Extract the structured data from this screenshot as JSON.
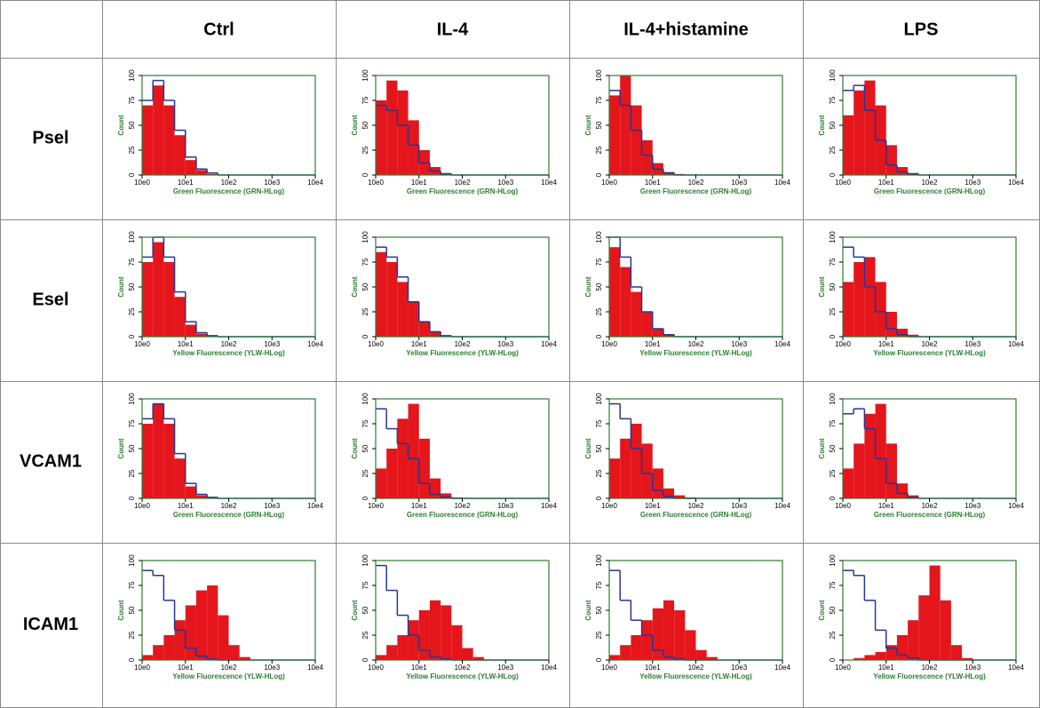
{
  "header": {
    "columns": [
      "Ctrl",
      "IL-4",
      "IL-4+histamine",
      "LPS"
    ]
  },
  "axes": {
    "y_label": "Count",
    "ylim": [
      0,
      100
    ],
    "yticks": [
      0,
      25,
      50,
      75,
      100
    ],
    "xlim": [
      0,
      4
    ],
    "xticks": [
      {
        "value": 0,
        "label": "10e0"
      },
      {
        "value": 1,
        "label": "10e1"
      },
      {
        "value": 2,
        "label": "10e2"
      },
      {
        "value": 3,
        "label": "10e3"
      },
      {
        "value": 4,
        "label": "10e4"
      }
    ],
    "bins": [
      0,
      0.25,
      0.5,
      0.75,
      1,
      1.25,
      1.5,
      1.75,
      2,
      2.25,
      2.5,
      2.75,
      3,
      3.25,
      3.5,
      3.75,
      4
    ],
    "colors": [
      "#e4161c",
      "#283593"
    ],
    "frame_color": "#2e7d32"
  },
  "rows": [
    {
      "label": "Psel",
      "x_label": "Green Fluorescence (GRN-HLog)",
      "plots": [
        {
          "series": [
            {
              "values": [
                70,
                90,
                70,
                40,
                15,
                5,
                1,
                0,
                0,
                0,
                0,
                0,
                0,
                0,
                0,
                0
              ]
            },
            {
              "values": [
                75,
                95,
                75,
                45,
                18,
                6,
                2,
                0,
                0,
                0,
                0,
                0,
                0,
                0,
                0,
                0
              ]
            }
          ]
        },
        {
          "series": [
            {
              "values": [
                75,
                95,
                85,
                55,
                25,
                8,
                2,
                0,
                0,
                0,
                0,
                0,
                0,
                0,
                0,
                0
              ]
            },
            {
              "values": [
                70,
                65,
                50,
                30,
                12,
                4,
                1,
                0,
                0,
                0,
                0,
                0,
                0,
                0,
                0,
                0
              ]
            }
          ]
        },
        {
          "series": [
            {
              "values": [
                80,
                100,
                70,
                35,
                12,
                3,
                1,
                0,
                0,
                0,
                0,
                0,
                0,
                0,
                0,
                0
              ]
            },
            {
              "values": [
                85,
                70,
                45,
                20,
                6,
                2,
                0,
                0,
                0,
                0,
                0,
                0,
                0,
                0,
                0,
                0
              ]
            }
          ]
        },
        {
          "series": [
            {
              "values": [
                60,
                85,
                95,
                70,
                30,
                8,
                2,
                0,
                0,
                0,
                0,
                0,
                0,
                0,
                0,
                0
              ]
            },
            {
              "values": [
                85,
                90,
                65,
                35,
                10,
                3,
                1,
                0,
                0,
                0,
                0,
                0,
                0,
                0,
                0,
                0
              ]
            }
          ]
        }
      ]
    },
    {
      "label": "Esel",
      "x_label": "Yellow Fluorescence (YLW-HLog)",
      "plots": [
        {
          "series": [
            {
              "values": [
                75,
                95,
                75,
                40,
                12,
                3,
                1,
                0,
                0,
                0,
                0,
                0,
                0,
                0,
                0,
                0
              ]
            },
            {
              "values": [
                80,
                100,
                80,
                45,
                15,
                4,
                1,
                0,
                0,
                0,
                0,
                0,
                0,
                0,
                0,
                0
              ]
            }
          ]
        },
        {
          "series": [
            {
              "values": [
                85,
                75,
                55,
                35,
                15,
                5,
                1,
                0,
                0,
                0,
                0,
                0,
                0,
                0,
                0,
                0
              ]
            },
            {
              "values": [
                90,
                80,
                60,
                35,
                15,
                5,
                1,
                0,
                0,
                0,
                0,
                0,
                0,
                0,
                0,
                0
              ]
            }
          ]
        },
        {
          "series": [
            {
              "values": [
                90,
                70,
                45,
                25,
                8,
                2,
                0,
                0,
                0,
                0,
                0,
                0,
                0,
                0,
                0,
                0
              ]
            },
            {
              "values": [
                100,
                80,
                50,
                25,
                8,
                2,
                0,
                0,
                0,
                0,
                0,
                0,
                0,
                0,
                0,
                0
              ]
            }
          ]
        },
        {
          "series": [
            {
              "values": [
                55,
                75,
                80,
                55,
                25,
                8,
                2,
                0,
                0,
                0,
                0,
                0,
                0,
                0,
                0,
                0
              ]
            },
            {
              "values": [
                90,
                80,
                50,
                25,
                8,
                2,
                0,
                0,
                0,
                0,
                0,
                0,
                0,
                0,
                0,
                0
              ]
            }
          ]
        }
      ]
    },
    {
      "label": "VCAM1",
      "x_label": "Green Fluorescence (GRN-HLog)",
      "plots": [
        {
          "series": [
            {
              "values": [
                75,
                95,
                75,
                40,
                12,
                3,
                1,
                0,
                0,
                0,
                0,
                0,
                0,
                0,
                0,
                0
              ]
            },
            {
              "values": [
                80,
                95,
                80,
                45,
                15,
                4,
                1,
                0,
                0,
                0,
                0,
                0,
                0,
                0,
                0,
                0
              ]
            }
          ]
        },
        {
          "series": [
            {
              "values": [
                30,
                50,
                80,
                95,
                60,
                20,
                5,
                1,
                0,
                0,
                0,
                0,
                0,
                0,
                0,
                0
              ]
            },
            {
              "values": [
                90,
                70,
                55,
                40,
                15,
                4,
                1,
                0,
                0,
                0,
                0,
                0,
                0,
                0,
                0,
                0
              ]
            }
          ]
        },
        {
          "series": [
            {
              "values": [
                40,
                60,
                75,
                55,
                30,
                10,
                3,
                1,
                0,
                0,
                0,
                0,
                0,
                0,
                0,
                0
              ]
            },
            {
              "values": [
                95,
                80,
                50,
                25,
                8,
                2,
                0,
                0,
                0,
                0,
                0,
                0,
                0,
                0,
                0,
                0
              ]
            }
          ]
        },
        {
          "series": [
            {
              "values": [
                30,
                55,
                85,
                95,
                55,
                15,
                3,
                0,
                0,
                0,
                0,
                0,
                0,
                0,
                0,
                0
              ]
            },
            {
              "values": [
                85,
                90,
                70,
                40,
                15,
                5,
                1,
                0,
                0,
                0,
                0,
                0,
                0,
                0,
                0,
                0
              ]
            }
          ]
        }
      ]
    },
    {
      "label": "ICAM1",
      "x_label": "Yellow Fluorescence (YLW-HLog)",
      "plots": [
        {
          "series": [
            {
              "values": [
                5,
                15,
                25,
                40,
                55,
                70,
                75,
                45,
                15,
                3,
                0,
                0,
                0,
                0,
                0,
                0
              ]
            },
            {
              "values": [
                90,
                85,
                60,
                30,
                12,
                4,
                1,
                0,
                0,
                0,
                0,
                0,
                0,
                0,
                0,
                0
              ]
            }
          ]
        },
        {
          "series": [
            {
              "values": [
                5,
                15,
                25,
                40,
                50,
                60,
                55,
                35,
                12,
                3,
                0,
                0,
                0,
                0,
                0,
                0
              ]
            },
            {
              "values": [
                95,
                70,
                45,
                25,
                10,
                3,
                1,
                0,
                0,
                0,
                0,
                0,
                0,
                0,
                0,
                0
              ]
            }
          ]
        },
        {
          "series": [
            {
              "values": [
                5,
                15,
                25,
                40,
                52,
                60,
                50,
                30,
                10,
                3,
                0,
                0,
                0,
                0,
                0,
                0
              ]
            },
            {
              "values": [
                90,
                60,
                40,
                25,
                10,
                3,
                1,
                0,
                0,
                0,
                0,
                0,
                0,
                0,
                0,
                0
              ]
            }
          ]
        },
        {
          "series": [
            {
              "values": [
                0,
                2,
                5,
                8,
                15,
                25,
                40,
                65,
                95,
                60,
                15,
                2,
                0,
                0,
                0,
                0
              ]
            },
            {
              "values": [
                90,
                85,
                60,
                30,
                12,
                5,
                2,
                0,
                0,
                0,
                0,
                0,
                0,
                0,
                0,
                0
              ]
            }
          ]
        }
      ]
    }
  ]
}
